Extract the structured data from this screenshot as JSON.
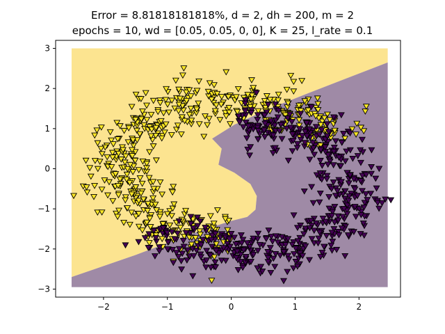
{
  "chart_data": {
    "type": "scatter",
    "title": "Error = 8.81818181818%, d = 2, dh = 200, m = 2",
    "subtitle": "epochs = 10, wd = [0.05, 0.05, 0, 0], K = 25, l_rate = 0.1",
    "xlabel": "",
    "ylabel": "",
    "xlim": [
      -2.75,
      2.65
    ],
    "ylim": [
      -3.2,
      3.2
    ],
    "grid": false,
    "x_ticks": [
      -2,
      -1,
      0,
      1,
      2
    ],
    "y_ticks": [
      -3,
      -2,
      -1,
      0,
      1,
      2,
      3
    ],
    "x_tick_labels": [
      "−2",
      "−1",
      "0",
      "1",
      "2"
    ],
    "y_tick_labels": [
      "−3",
      "−2",
      "−1",
      "0",
      "1",
      "2",
      "3"
    ],
    "marker": "triangle-down",
    "region_extent": {
      "x": [
        -2.5,
        2.45
      ],
      "y": [
        -2.95,
        3.0
      ]
    },
    "decision_boundary": [
      [
        -2.5,
        -2.7
      ],
      [
        -1.5,
        -2.15
      ],
      [
        -0.5,
        -1.55
      ],
      [
        0.0,
        -1.3
      ],
      [
        0.25,
        -1.2
      ],
      [
        0.38,
        -1.02
      ],
      [
        0.4,
        -0.68
      ],
      [
        0.3,
        -0.38
      ],
      [
        0.05,
        -0.1
      ],
      [
        -0.2,
        0.1
      ],
      [
        -0.15,
        0.5
      ],
      [
        -0.3,
        0.75
      ],
      [
        0.05,
        1.1
      ],
      [
        0.6,
        1.5
      ],
      [
        1.2,
        1.88
      ],
      [
        1.8,
        2.25
      ],
      [
        2.45,
        2.65
      ]
    ],
    "colors": {
      "yellow_region": "#fce490",
      "purple_region": "#9f8aa6",
      "yellow_marker": "#fde725",
      "purple_marker": "#440154",
      "marker_edge": "#000000"
    },
    "series": [
      {
        "class": "yellow",
        "moon": {
          "cx": 0.0,
          "cy": 0.0,
          "r": 1.75,
          "theta_range": [
            22,
            270
          ],
          "spread": 0.28
        },
        "count": 550,
        "seed": 7
      },
      {
        "class": "purple",
        "moon": {
          "cx": 0.25,
          "cy": -0.5,
          "r": 1.65,
          "theta_range": [
            -145,
            95
          ],
          "spread": 0.28
        },
        "count": 550,
        "seed": 13
      }
    ]
  }
}
